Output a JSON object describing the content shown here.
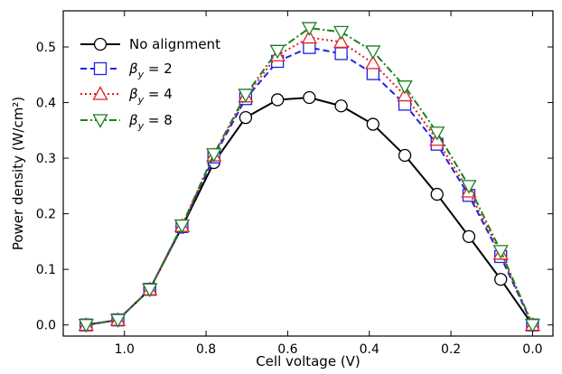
{
  "chart_data": {
    "type": "line",
    "title": "",
    "xlabel": "Cell voltage (V)",
    "ylabel": "Power density (W/cm²)",
    "xlim": [
      1.15,
      -0.05
    ],
    "ylim": [
      -0.02,
      0.565
    ],
    "x_reversed": true,
    "grid": false,
    "legend_position": "top-left",
    "x_ticks": [
      {
        "value": 1.0,
        "label": "1.0"
      },
      {
        "value": 0.8,
        "label": "0.8"
      },
      {
        "value": 0.6,
        "label": "0.6"
      },
      {
        "value": 0.4,
        "label": "0.4"
      },
      {
        "value": 0.2,
        "label": "0.2"
      },
      {
        "value": 0.0,
        "label": "0.0"
      }
    ],
    "y_ticks": [
      {
        "value": 0.0,
        "label": "0.0"
      },
      {
        "value": 0.1,
        "label": "0.1"
      },
      {
        "value": 0.2,
        "label": "0.2"
      },
      {
        "value": 0.3,
        "label": "0.3"
      },
      {
        "value": 0.4,
        "label": "0.4"
      },
      {
        "value": 0.5,
        "label": "0.5"
      }
    ],
    "series": [
      {
        "name": "No alignment",
        "legend": {
          "main": "No alignment",
          "sub": "",
          "tail": ""
        },
        "color": "#000000",
        "dash": "",
        "marker": "circle",
        "x": [
          1.094,
          1.016,
          0.938,
          0.859,
          0.781,
          0.703,
          0.625,
          0.547,
          0.469,
          0.391,
          0.313,
          0.234,
          0.156,
          0.078,
          0.0
        ],
        "y": [
          0.0,
          0.009,
          0.064,
          0.176,
          0.292,
          0.373,
          0.405,
          0.409,
          0.394,
          0.361,
          0.305,
          0.235,
          0.159,
          0.082,
          0.0
        ]
      },
      {
        "name": "βy = 2",
        "legend": {
          "main": "β",
          "sub": "y",
          "tail": " = 2"
        },
        "color": "#1f1fe6",
        "dash": "7,4",
        "marker": "square",
        "x": [
          1.094,
          1.016,
          0.938,
          0.859,
          0.781,
          0.703,
          0.625,
          0.547,
          0.469,
          0.391,
          0.313,
          0.234,
          0.156,
          0.078,
          0.0
        ],
        "y": [
          0.0,
          0.009,
          0.064,
          0.177,
          0.302,
          0.407,
          0.474,
          0.499,
          0.488,
          0.452,
          0.397,
          0.325,
          0.233,
          0.123,
          0.0
        ]
      },
      {
        "name": "βy = 4",
        "legend": {
          "main": "β",
          "sub": "y",
          "tail": " = 4"
        },
        "color": "#e61e1e",
        "dash": "2,3",
        "marker": "triangle-up",
        "x": [
          1.094,
          1.016,
          0.938,
          0.859,
          0.781,
          0.703,
          0.625,
          0.547,
          0.469,
          0.391,
          0.313,
          0.234,
          0.156,
          0.078,
          0.0
        ],
        "y": [
          0.0,
          0.009,
          0.064,
          0.178,
          0.305,
          0.411,
          0.485,
          0.517,
          0.509,
          0.471,
          0.413,
          0.333,
          0.24,
          0.128,
          0.0
        ]
      },
      {
        "name": "βy = 8",
        "legend": {
          "main": "β",
          "sub": "y",
          "tail": " = 8"
        },
        "color": "#1e7d1e",
        "dash": "8,3,2,3",
        "marker": "triangle-down",
        "x": [
          1.094,
          1.016,
          0.938,
          0.859,
          0.781,
          0.703,
          0.625,
          0.547,
          0.469,
          0.391,
          0.313,
          0.234,
          0.156,
          0.078,
          0.0
        ],
        "y": [
          0.0,
          0.009,
          0.064,
          0.179,
          0.307,
          0.414,
          0.493,
          0.534,
          0.527,
          0.492,
          0.429,
          0.346,
          0.25,
          0.133,
          0.0
        ]
      }
    ]
  }
}
